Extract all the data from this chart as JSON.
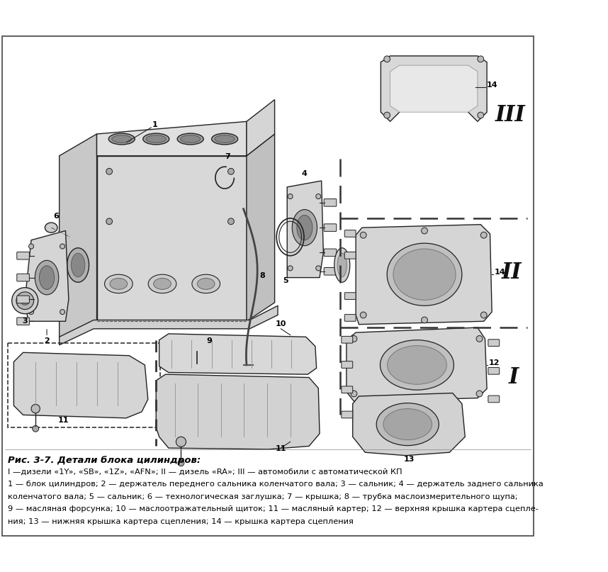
{
  "bg_color": "#ffffff",
  "border_color": "#333333",
  "title_line": "Рис. 3-7. Детали блока цилиндров:",
  "caption_line1": "I —дизели «1Y», «SB», «1Z», «AFN»; II — дизель «RA»; III — автомобили с автоматической КП",
  "caption_line2": "1 — блок цилиндров; 2 — держатель переднего сальника коленчатого вала; 3 — сальник; 4 — держатель заднего сальника",
  "caption_line3": "коленчатого вала; 5 — сальник; 6 — технологическая заглушка; 7 — крышка; 8 — трубка маслоизмерительного щупа;",
  "caption_line4": "9 — масляная форсунка; 10 — маслоотражательный щиток; 11 — масляный картер; 12 — верхняя крышка картера сцепле-",
  "caption_line5": "ния; 13 — нижняя крышка картера сцепления; 14 — крышка картера сцепления",
  "figsize": [
    8.58,
    8.07
  ],
  "dpi": 100
}
